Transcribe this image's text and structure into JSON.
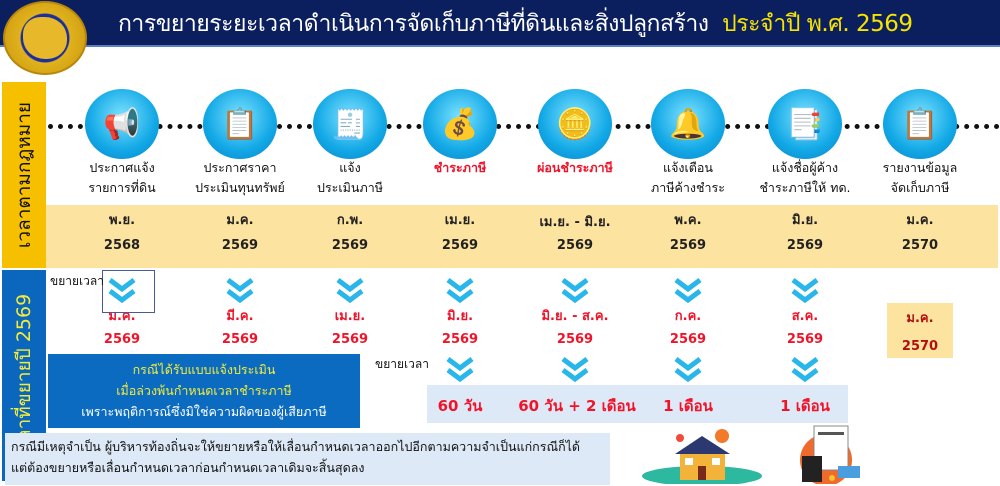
{
  "header": {
    "title": "การขยายระยะเวลาดำเนินการจัดเก็บภาษีที่ดินและสิ่งปลูกสร้าง",
    "title_year": "ประจำปี พ.ศ. 2569"
  },
  "side": {
    "law": "เวลาตามกฎหมาย",
    "extended": "เวลาที่ขยายปี 2569"
  },
  "steps": [
    {
      "icon": "megaphone-icon",
      "l1": "ประกาศแจ้ง",
      "l2": "รายการที่ดิน",
      "m": "พ.ย.",
      "y": "2568",
      "em": "ม.ค.",
      "ey": "2569",
      "red": false
    },
    {
      "icon": "clipboard-checklist-icon",
      "l1": "ประกาศราคา",
      "l2": "ประเมินทุนทรัพย์",
      "m": "ม.ค.",
      "y": "2569",
      "em": "มี.ค.",
      "ey": "2569",
      "red": false
    },
    {
      "icon": "tax-form-icon",
      "l1": "แจ้ง",
      "l2": "ประเมินภาษี",
      "m": "ก.พ.",
      "y": "2569",
      "em": "เม.ย.",
      "ey": "2569",
      "red": false
    },
    {
      "icon": "money-bag-icon",
      "l1": "ชำระภาษี",
      "l2": "",
      "m": "เม.ย.",
      "y": "2569",
      "em": "มิ.ย.",
      "ey": "2569",
      "red": true
    },
    {
      "icon": "coin-hand-icon",
      "l1": "ผ่อนชำระภาษี",
      "l2": "",
      "m": "เม.ย. - มิ.ย.",
      "y": "2569",
      "em": "มิ.ย. - ส.ค.",
      "ey": "2569",
      "red": true
    },
    {
      "icon": "bell-alert-icon",
      "l1": "แจ้งเตือน",
      "l2": "ภาษีค้างชำระ",
      "m": "พ.ค.",
      "y": "2569",
      "em": "ก.ค.",
      "ey": "2569",
      "red": false
    },
    {
      "icon": "tax-report-icon",
      "l1": "แจ้งชื่อผู้ค้าง",
      "l2": "ชำระภาษีให้ ทด.",
      "m": "มิ.ย.",
      "y": "2569",
      "em": "ส.ค.",
      "ey": "2569",
      "red": false
    },
    {
      "icon": "report-clipboard-icon",
      "l1": "รายงานข้อมูล",
      "l2": "จัดเก็บภาษี",
      "m": "ม.ค.",
      "y": "2570",
      "em": "ม.ค.",
      "ey": "2570",
      "red": false
    }
  ],
  "extend_label": "ขยายเวลา",
  "assessment_box": [
    "กรณีได้รับแบบแจ้งประเมิน",
    "เมื่อล่วงพ้นกำหนดเวลาชำระภาษี",
    "เพราะพฤติการณ์ซึ่งมิใช่ความผิดของผู้เสียภาษี"
  ],
  "durations": [
    "60 วัน",
    "60 วัน + 2 เดือน",
    "1 เดือน",
    "1 เดือน"
  ],
  "note": [
    "กรณีมีเหตุจำเป็น ผู้บริหารท้องถิ่นจะให้ขยายหรือให้เลื่อนกำหนดเวลาออกไปอีกตามความจำเป็นแก่กรณีก็ได้",
    "แต่ต้องขยายหรือเลื่อนกำหนดเวลาก่อนกำหนดเวลาเดิมจะสิ้นสุดลง"
  ],
  "colors": {
    "header": "#0b1f5e",
    "title_year": "#f7e400",
    "law_label": "#f6c000",
    "ext_label": "#0a67bd",
    "band": "#fce3a0",
    "red": "#f0142a",
    "chevron": "#29b6ea"
  }
}
